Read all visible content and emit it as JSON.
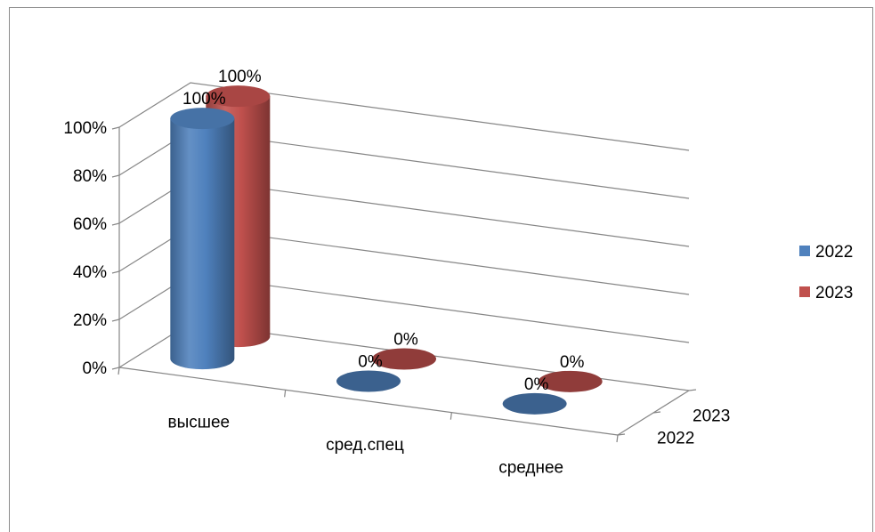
{
  "chart_data": {
    "type": "bar",
    "style": "3d-cylinder",
    "categories": [
      "высшее",
      "сред.спец",
      "среднее"
    ],
    "series": [
      {
        "name": "2022",
        "color": "#4f81bd",
        "values": [
          100,
          0,
          0
        ],
        "labels": [
          "100%",
          "0%",
          "0%"
        ]
      },
      {
        "name": "2023",
        "color": "#c0504d",
        "values": [
          100,
          0,
          0
        ],
        "labels": [
          "100%",
          "0%",
          "0%"
        ]
      }
    ],
    "ylim": [
      0,
      100
    ],
    "y_ticks": [
      "0%",
      "20%",
      "40%",
      "60%",
      "80%",
      "100%"
    ],
    "depth_labels": [
      "2022",
      "2023"
    ],
    "legend": {
      "position": "right",
      "entries": [
        "2022",
        "2023"
      ]
    },
    "grid": true
  }
}
